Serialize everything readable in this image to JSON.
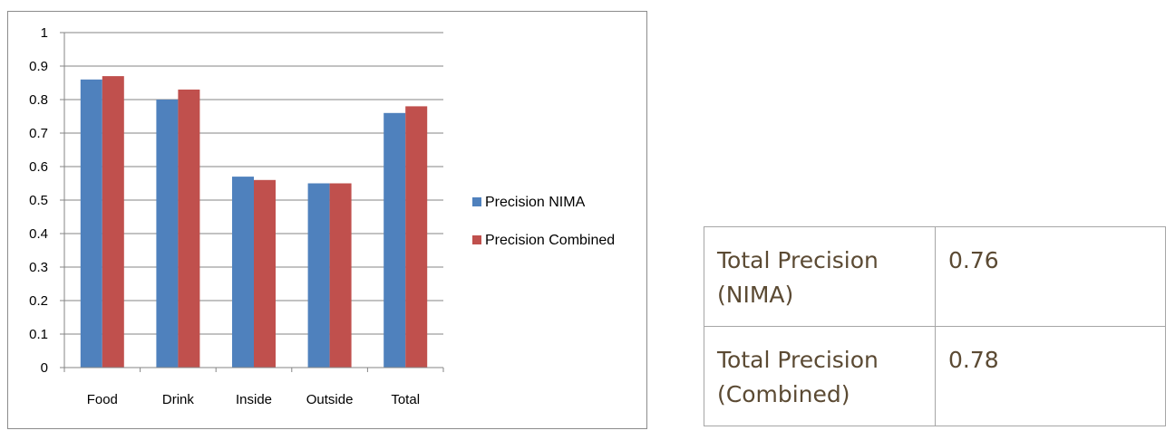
{
  "chart_data": {
    "type": "bar",
    "categories": [
      "Food",
      "Drink",
      "Inside",
      "Outside",
      "Total"
    ],
    "series": [
      {
        "name": "Precision NIMA",
        "color": "#4f81bd",
        "values": [
          0.86,
          0.8,
          0.57,
          0.55,
          0.76
        ]
      },
      {
        "name": "Precision Combined",
        "color": "#c0504d",
        "values": [
          0.87,
          0.83,
          0.56,
          0.55,
          0.78
        ]
      }
    ],
    "yticks": [
      "0",
      "0.1",
      "0.2",
      "0.3",
      "0.4",
      "0.5",
      "0.6",
      "0.7",
      "0.8",
      "0.9",
      "1"
    ],
    "ylim": [
      0,
      1
    ],
    "grid": true,
    "legend": "right"
  },
  "table": {
    "rows": [
      {
        "label": "Total Precision (NIMA)",
        "value": "0.76"
      },
      {
        "label": "Total Precision (Combined)",
        "value": "0.78"
      }
    ]
  }
}
